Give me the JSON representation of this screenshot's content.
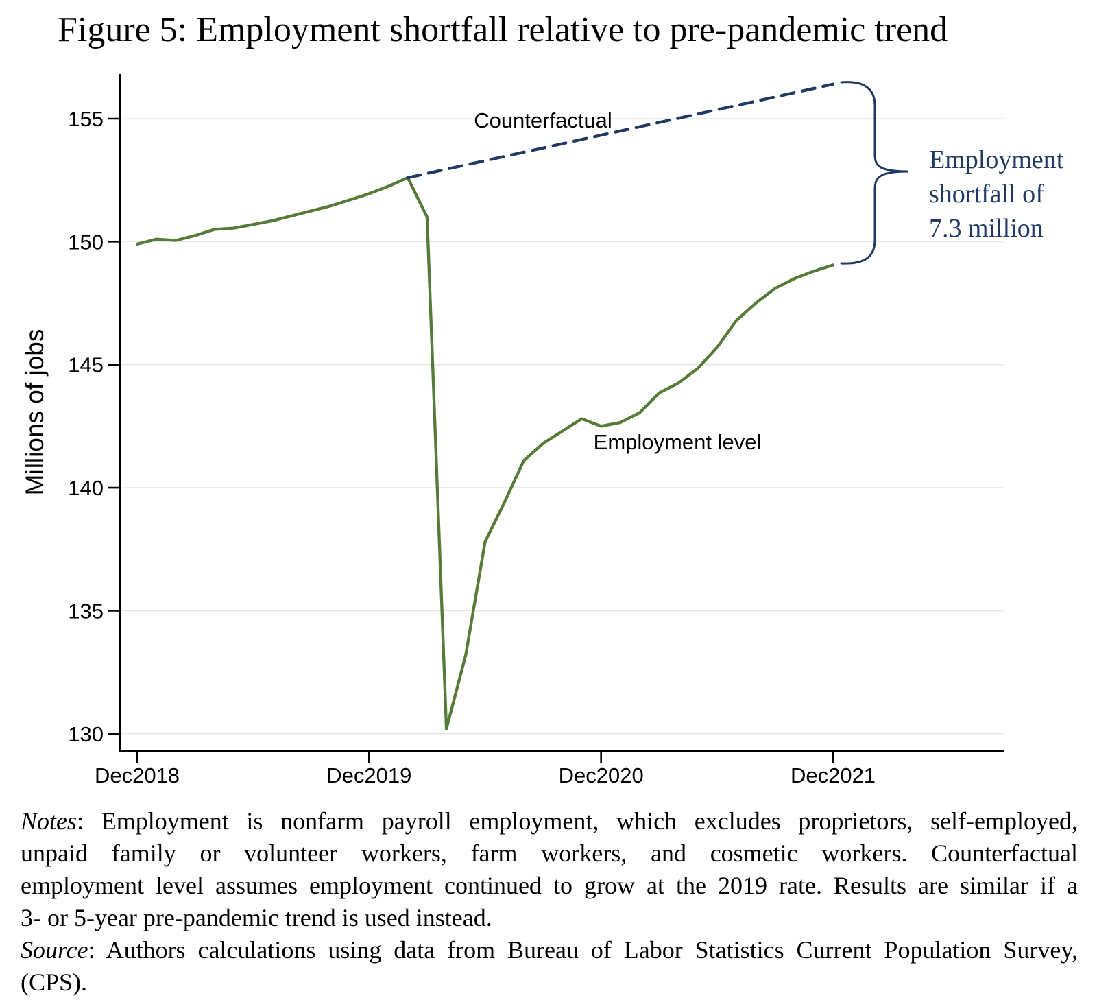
{
  "figure": {
    "title": "Figure 5: Employment shortfall relative to pre-pandemic trend"
  },
  "chart_data": {
    "type": "line",
    "title": "Figure 5: Employment shortfall relative to pre-pandemic trend",
    "ylabel": "Millions of jobs",
    "ylim": [
      128.9,
      156.8
    ],
    "yticks": [
      155,
      150,
      145,
      140,
      135,
      130
    ],
    "grid": "horizontal-light-gray",
    "legend": "inline-labels",
    "x_axis": {
      "frequency": "monthly",
      "start": "Dec2018",
      "end": "Dec2021",
      "tick_labels": [
        "Dec2018",
        "Dec2019",
        "Dec2020",
        "Dec2021"
      ],
      "tick_month_index": [
        0,
        12,
        24,
        36
      ]
    },
    "series": [
      {
        "name": "Employment level",
        "style": "solid",
        "color": "#567b38",
        "start_month_index": 0,
        "values": [
          149.9,
          150.1,
          150.05,
          150.25,
          150.5,
          150.55,
          150.7,
          150.85,
          151.05,
          151.25,
          151.45,
          151.7,
          151.95,
          152.25,
          152.6,
          151.0,
          130.2,
          133.2,
          137.8,
          139.4,
          141.1,
          141.8,
          142.3,
          142.8,
          142.5,
          142.65,
          143.05,
          143.85,
          144.25,
          144.85,
          145.7,
          146.8,
          147.5,
          148.1,
          148.5,
          148.8,
          149.05
        ]
      },
      {
        "name": "Counterfactual",
        "style": "dashed",
        "color": "#1f3864",
        "points": [
          {
            "month_index": 14,
            "value": 152.6
          },
          {
            "month_index": 36,
            "value": 156.4
          }
        ]
      }
    ],
    "annotations": {
      "counterfactual_label": "Counterfactual",
      "employment_label": "Employment level",
      "shortfall": {
        "lines": [
          "Employment",
          "shortfall of",
          "7.3 million"
        ],
        "value": "7.3 million",
        "color": "#1f3864"
      }
    }
  },
  "notes": {
    "lines": [
      {
        "prefix": "Notes",
        "rest": ": Employment is nonfarm payroll employment, which excludes proprietors, self-employed,",
        "justify": true
      },
      {
        "prefix": "",
        "rest": "unpaid family or volunteer workers, farm workers, and cosmetic workers. Counterfactual",
        "justify": true
      },
      {
        "prefix": "",
        "rest": "employment level assumes employment continued to grow at the 2019 rate. Results are similar if a",
        "justify": true
      },
      {
        "prefix": "",
        "rest": "3- or 5-year pre-pandemic trend is used instead.",
        "justify": false
      },
      {
        "prefix": "Source",
        "rest": ": Authors calculations using data from Bureau of Labor Statistics Current Population Survey,",
        "justify": true
      },
      {
        "prefix": "",
        "rest": "(CPS).",
        "justify": false
      }
    ]
  }
}
